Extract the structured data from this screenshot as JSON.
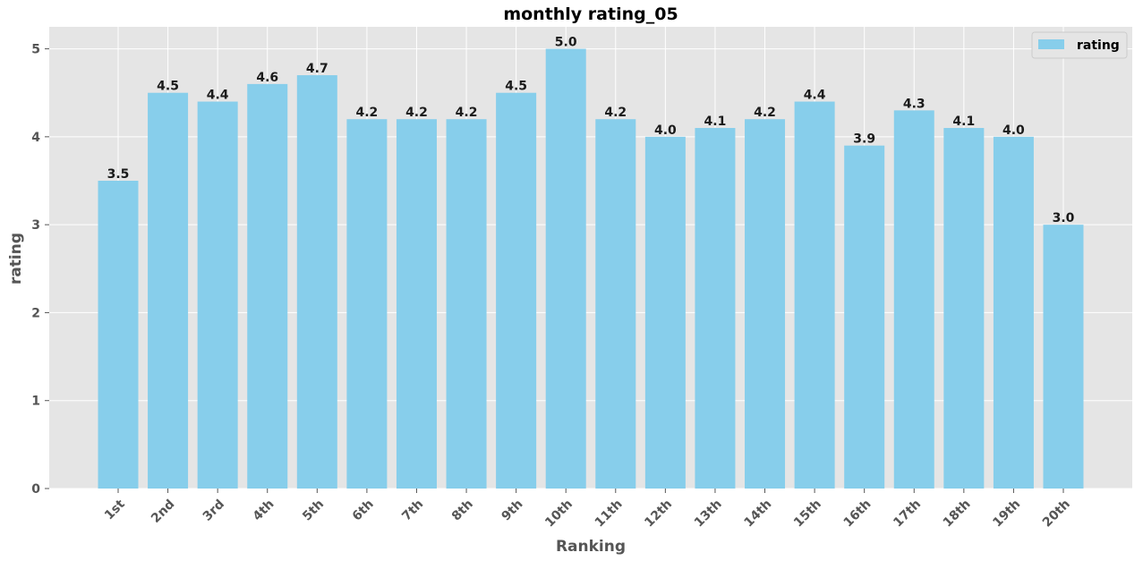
{
  "chart_data": {
    "type": "bar",
    "title": "monthly rating_05",
    "xlabel": "Ranking",
    "ylabel": "rating",
    "categories": [
      "1st",
      "2nd",
      "3rd",
      "4th",
      "5th",
      "6th",
      "7th",
      "8th",
      "9th",
      "10th",
      "11th",
      "12th",
      "13th",
      "14th",
      "15th",
      "16th",
      "17th",
      "18th",
      "19th",
      "20th"
    ],
    "series": [
      {
        "name": "rating",
        "values": [
          3.5,
          4.5,
          4.4,
          4.6,
          4.7,
          4.2,
          4.2,
          4.2,
          4.5,
          5.0,
          4.2,
          4.0,
          4.1,
          4.2,
          4.4,
          3.9,
          4.3,
          4.1,
          4.0,
          3.0
        ]
      }
    ],
    "data_labels": [
      "3.5",
      "4.5",
      "4.4",
      "4.6",
      "4.7",
      "4.2",
      "4.2",
      "4.2",
      "4.5",
      "5.0",
      "4.2",
      "4.0",
      "4.1",
      "4.2",
      "4.4",
      "3.9",
      "4.3",
      "4.1",
      "4.0",
      "3.0"
    ],
    "yticks": [
      "0",
      "1",
      "2",
      "3",
      "4",
      "5"
    ],
    "ylim": [
      0,
      5.25
    ],
    "grid": true,
    "legend_position": "top-right",
    "colors": {
      "bar": "#87CEEB",
      "background": "#E5E5E5",
      "grid": "#FFFFFF"
    }
  }
}
